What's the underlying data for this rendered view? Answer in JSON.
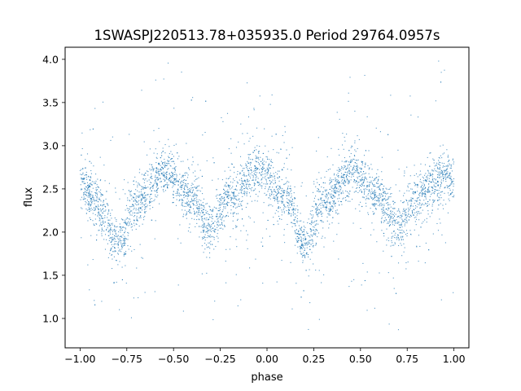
{
  "chart_data": {
    "type": "scatter",
    "title": "1SWASPJ220513.78+035935.0 Period 29764.0957s",
    "xlabel": "phase",
    "ylabel": "flux",
    "xlim": [
      -1.08,
      1.08
    ],
    "ylim": [
      0.66,
      4.14
    ],
    "xticks": [
      -1.0,
      -0.75,
      -0.5,
      -0.25,
      0.0,
      0.25,
      0.5,
      0.75,
      1.0
    ],
    "xtick_labels": [
      "−1.00",
      "−0.75",
      "−0.50",
      "−0.25",
      "0.00",
      "0.25",
      "0.50",
      "0.75",
      "1.00"
    ],
    "yticks": [
      1.0,
      1.5,
      2.0,
      2.5,
      3.0,
      3.5,
      4.0
    ],
    "ytick_labels": [
      "1.0",
      "1.5",
      "2.0",
      "2.5",
      "3.0",
      "3.5",
      "4.0"
    ],
    "grid": false,
    "legend": "none",
    "marker_color": "#1f77b4",
    "series": [
      {
        "x": [
          -1.0,
          -0.9,
          -0.8,
          -0.7,
          -0.55,
          -0.4,
          -0.3,
          -0.2,
          -0.05,
          0.1,
          0.2,
          0.3,
          0.45,
          0.6,
          0.7,
          0.8,
          0.95,
          1.0
        ],
        "values": [
          2.6,
          2.3,
          1.85,
          2.35,
          2.7,
          2.4,
          2.05,
          2.4,
          2.7,
          2.4,
          1.85,
          2.35,
          2.7,
          2.4,
          2.05,
          2.4,
          2.65,
          2.6
        ]
      }
    ]
  }
}
